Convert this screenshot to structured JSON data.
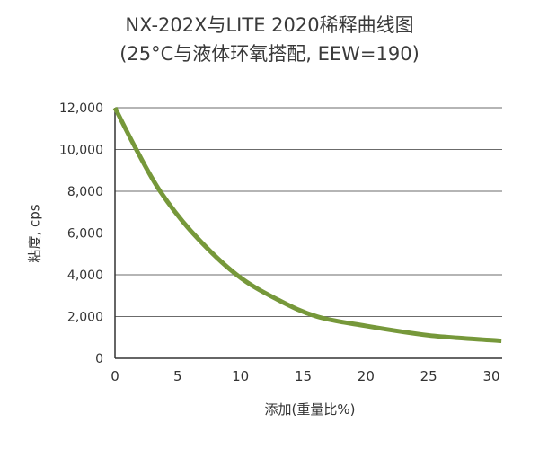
{
  "chart_data": {
    "type": "line",
    "title": "NX-202X与LITE 2020稀释曲线图",
    "subtitle": "(25°C与液体环氧搭配, EEW=190)",
    "xlabel": "添加(重量比%)",
    "ylabel": "粘度, cps",
    "xlim": [
      0,
      30.8
    ],
    "ylim": [
      0,
      12000
    ],
    "x_ticks": [
      0,
      5,
      10,
      15,
      20,
      25,
      30
    ],
    "x_tick_labels": [
      "0",
      "5",
      "10",
      "15",
      "20",
      "25",
      "30"
    ],
    "y_ticks": [
      0,
      2000,
      4000,
      6000,
      8000,
      10000,
      12000
    ],
    "y_tick_labels": [
      "0",
      "2,000",
      "4,000",
      "6,000",
      "8,000",
      "10,000",
      "12,000"
    ],
    "grid": "horizontal",
    "series": [
      {
        "color": "#76983a",
        "x": [
          0,
          1.7,
          3.6,
          6.2,
          9.7,
          13,
          16.1,
          20,
          25,
          30,
          30.8
        ],
        "y": [
          12000,
          10000,
          8000,
          6000,
          4000,
          2800,
          2000,
          1550,
          1100,
          870,
          840
        ]
      }
    ]
  }
}
